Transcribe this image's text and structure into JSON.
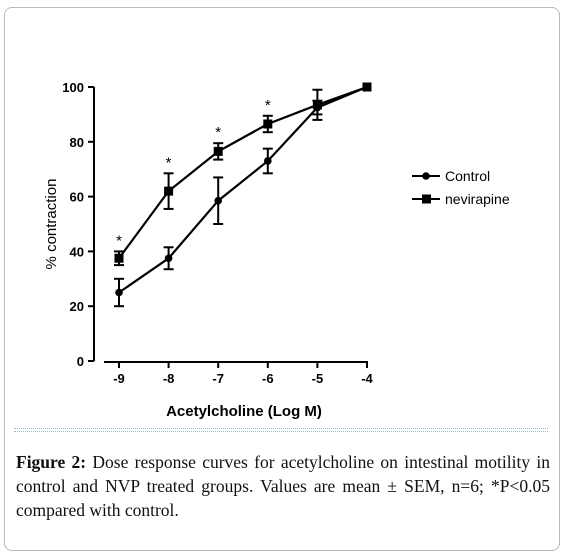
{
  "chart_data": {
    "type": "line",
    "xlabel": "Acetylcholine (Log M)",
    "ylabel": "% contraction",
    "x": [
      -9,
      -8,
      -7,
      -6,
      -5,
      -4
    ],
    "xlim": [
      -9.4,
      -3.8
    ],
    "ylim": [
      0,
      100
    ],
    "x_ticks": [
      "-9",
      "-8",
      "-7",
      "-6",
      "-5",
      "-4"
    ],
    "y_ticks": [
      "0",
      "20",
      "40",
      "60",
      "80",
      "100"
    ],
    "legend_position": "right",
    "grid": false,
    "series": [
      {
        "name": "Control",
        "marker": "circle",
        "values": [
          25,
          37.5,
          58.5,
          73,
          92.5,
          100
        ],
        "sem": [
          5,
          4,
          8.5,
          4.5,
          2.5,
          0
        ]
      },
      {
        "name": "nevirapine",
        "marker": "square",
        "values": [
          37.5,
          62,
          76.5,
          86.5,
          93.5,
          100
        ],
        "sem": [
          2.5,
          6.5,
          3,
          3,
          5.5,
          0
        ]
      }
    ],
    "significance_marks": [
      {
        "x": -9,
        "text": "*"
      },
      {
        "x": -8,
        "text": "*"
      },
      {
        "x": -7,
        "text": "*"
      },
      {
        "x": -6,
        "text": "*"
      }
    ]
  },
  "caption": {
    "label": "Figure 2:",
    "text": " Dose response curves for acetylcholine on intestinal motility in control and NVP treated groups. Values are mean ± SEM, n=6; *P<0.05 compared with control."
  }
}
